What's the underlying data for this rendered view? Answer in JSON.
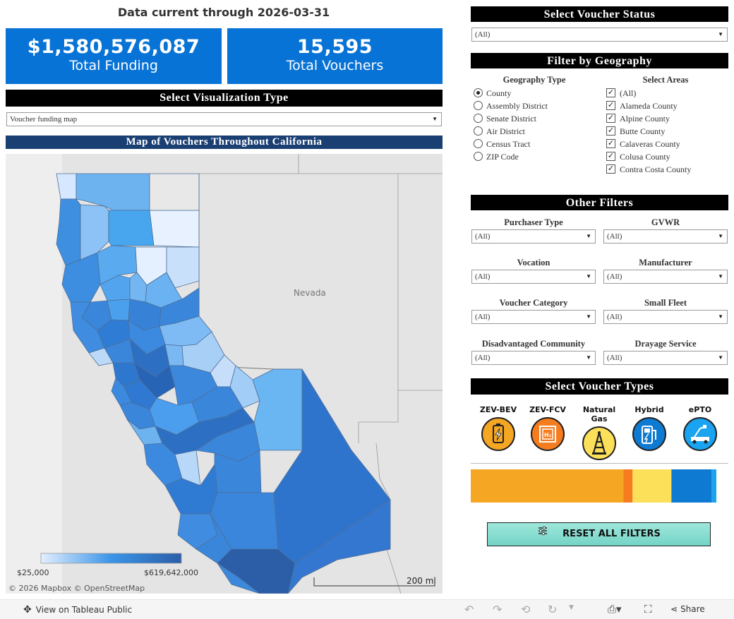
{
  "header": {
    "data_current": "Data current through 2026-03-31"
  },
  "kpis": {
    "funding_value": "$1,580,576,087",
    "funding_label": "Total Funding",
    "vouchers_value": "15,595",
    "vouchers_label": "Total Vouchers"
  },
  "viz_type": {
    "title": "Select Visualization Type",
    "selected": "Voucher funding map"
  },
  "map": {
    "title": "Map of Vouchers Throughout California",
    "nevada_label": "Nevada",
    "legend_min": "$25,000",
    "legend_max": "$619,642,000",
    "attribution": "© 2026 Mapbox  © OpenStreetMap",
    "scale_label": "200 mi",
    "colors": {
      "low": "#e3efff",
      "mid": "#3b95e8",
      "high": "#2c5ea8"
    }
  },
  "voucher_status": {
    "title": "Select Voucher Status",
    "selected": "(All)"
  },
  "geography": {
    "title": "Filter by Geography",
    "type_header": "Geography Type",
    "areas_header": "Select Areas",
    "types": [
      "County",
      "Assembly District",
      "Senate District",
      "Air District",
      "Census Tract",
      "ZIP Code"
    ],
    "areas": [
      "(All)",
      "Alameda County",
      "Alpine County",
      "Butte County",
      "Calaveras County",
      "Colusa County",
      "Contra Costa County"
    ]
  },
  "other_filters": {
    "title": "Other Filters",
    "filters": [
      {
        "label": "Purchaser Type",
        "value": "(All)"
      },
      {
        "label": "GVWR",
        "value": "(All)"
      },
      {
        "label": "Vocation",
        "value": "(All)"
      },
      {
        "label": "Manufacturer",
        "value": "(All)"
      },
      {
        "label": "Voucher Category",
        "value": "(All)"
      },
      {
        "label": "Small Fleet",
        "value": "(All)"
      },
      {
        "label": "Disadvantaged Community",
        "value": "(All)"
      },
      {
        "label": "Drayage Service",
        "value": "(All)"
      }
    ]
  },
  "voucher_types": {
    "title": "Select Voucher Types",
    "types": [
      {
        "label": "ZEV-BEV",
        "color": "#f5a623"
      },
      {
        "label": "ZEV-FCV",
        "color": "#f57c1f"
      },
      {
        "label": "Natural Gas",
        "color": "#fde05a"
      },
      {
        "label": "Hybrid",
        "color": "#0f7ad1"
      },
      {
        "label": "ePTO",
        "color": "#1aa3f0"
      }
    ],
    "share_bar": [
      {
        "name": "ZEV-BEV",
        "share": 0.622,
        "color": "#f5a623"
      },
      {
        "name": "ZEV-FCV",
        "share": 0.037,
        "color": "#f57c1f"
      },
      {
        "name": "Natural Gas",
        "share": 0.158,
        "color": "#fde05a"
      },
      {
        "name": "Hybrid",
        "share": 0.164,
        "color": "#0f7ad1"
      },
      {
        "name": "ePTO",
        "share": 0.019,
        "color": "#1aa3f0"
      }
    ]
  },
  "reset": {
    "label": "RESET ALL FILTERS"
  },
  "footer": {
    "view_label": "View on Tableau Public",
    "share_label": "Share"
  }
}
